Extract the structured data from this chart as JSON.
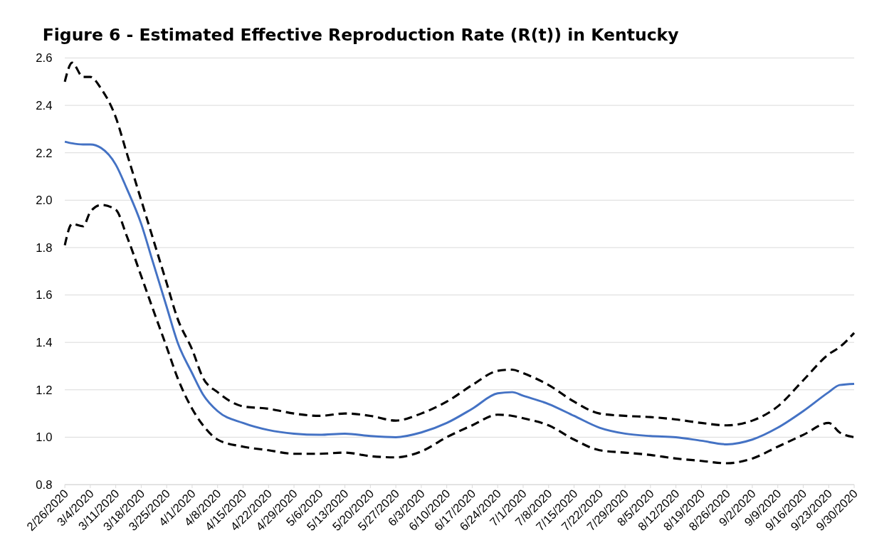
{
  "chart_data": {
    "type": "line",
    "title": "Figure 6 - Estimated Effective Reproduction Rate (R(t)) in Kentucky",
    "x": [
      "2020-02-26",
      "2020-02-28",
      "2020-03-02",
      "2020-03-04",
      "2020-03-07",
      "2020-03-11",
      "2020-03-14",
      "2020-03-18",
      "2020-03-21",
      "2020-03-25",
      "2020-03-28",
      "2020-04-01",
      "2020-04-04",
      "2020-04-08",
      "2020-04-15",
      "2020-04-22",
      "2020-04-29",
      "2020-05-06",
      "2020-05-13",
      "2020-05-20",
      "2020-05-27",
      "2020-06-03",
      "2020-06-10",
      "2020-06-17",
      "2020-06-24",
      "2020-06-28",
      "2020-07-01",
      "2020-07-08",
      "2020-07-15",
      "2020-07-22",
      "2020-07-29",
      "2020-08-05",
      "2020-08-12",
      "2020-08-19",
      "2020-08-26",
      "2020-09-02",
      "2020-09-09",
      "2020-09-16",
      "2020-09-23",
      "2020-09-26",
      "2020-09-30"
    ],
    "series": [
      {
        "color": "#000000",
        "line_style": "dashed",
        "values": [
          2.5,
          2.58,
          2.52,
          2.52,
          2.47,
          2.35,
          2.2,
          2.0,
          1.85,
          1.65,
          1.5,
          1.37,
          1.25,
          1.19,
          1.13,
          1.12,
          1.1,
          1.09,
          1.1,
          1.09,
          1.07,
          1.1,
          1.15,
          1.22,
          1.28,
          1.285,
          1.27,
          1.22,
          1.15,
          1.1,
          1.09,
          1.085,
          1.075,
          1.06,
          1.05,
          1.07,
          1.13,
          1.24,
          1.35,
          1.38,
          1.44
        ]
      },
      {
        "color": "#000000",
        "line_style": "dashed",
        "values": [
          1.81,
          1.9,
          1.89,
          1.95,
          1.98,
          1.96,
          1.85,
          1.68,
          1.55,
          1.38,
          1.25,
          1.12,
          1.05,
          0.99,
          0.96,
          0.945,
          0.93,
          0.93,
          0.935,
          0.92,
          0.915,
          0.94,
          1.0,
          1.05,
          1.095,
          1.09,
          1.08,
          1.05,
          0.99,
          0.945,
          0.935,
          0.925,
          0.91,
          0.9,
          0.89,
          0.91,
          0.96,
          1.01,
          1.06,
          1.02,
          1.0
        ]
      },
      {
        "color": "#4472c4",
        "line_style": "solid",
        "values": [
          2.247,
          2.24,
          2.235,
          2.235,
          2.22,
          2.15,
          2.05,
          1.9,
          1.75,
          1.55,
          1.4,
          1.27,
          1.18,
          1.11,
          1.06,
          1.03,
          1.015,
          1.01,
          1.015,
          1.005,
          1.0,
          1.02,
          1.06,
          1.12,
          1.185,
          1.19,
          1.175,
          1.14,
          1.09,
          1.04,
          1.015,
          1.005,
          1.0,
          0.985,
          0.97,
          0.99,
          1.04,
          1.11,
          1.19,
          1.22,
          1.225
        ]
      }
    ],
    "xlim": [
      "2020-02-26",
      "2020-09-30"
    ],
    "xticks": [
      {
        "value": "2020-02-26",
        "label": "2/26/2020"
      },
      {
        "value": "2020-03-04",
        "label": "3/4/2020"
      },
      {
        "value": "2020-03-11",
        "label": "3/11/2020"
      },
      {
        "value": "2020-03-18",
        "label": "3/18/2020"
      },
      {
        "value": "2020-03-25",
        "label": "3/25/2020"
      },
      {
        "value": "2020-04-01",
        "label": "4/1/2020"
      },
      {
        "value": "2020-04-08",
        "label": "4/8/2020"
      },
      {
        "value": "2020-04-15",
        "label": "4/15/2020"
      },
      {
        "value": "2020-04-22",
        "label": "4/22/2020"
      },
      {
        "value": "2020-04-29",
        "label": "4/29/2020"
      },
      {
        "value": "2020-05-06",
        "label": "5/6/2020"
      },
      {
        "value": "2020-05-13",
        "label": "5/13/2020"
      },
      {
        "value": "2020-05-20",
        "label": "5/20/2020"
      },
      {
        "value": "2020-05-27",
        "label": "5/27/2020"
      },
      {
        "value": "2020-06-03",
        "label": "6/3/2020"
      },
      {
        "value": "2020-06-10",
        "label": "6/10/2020"
      },
      {
        "value": "2020-06-17",
        "label": "6/17/2020"
      },
      {
        "value": "2020-06-24",
        "label": "6/24/2020"
      },
      {
        "value": "2020-07-01",
        "label": "7/1/2020"
      },
      {
        "value": "2020-07-08",
        "label": "7/8/2020"
      },
      {
        "value": "2020-07-15",
        "label": "7/15/2020"
      },
      {
        "value": "2020-07-22",
        "label": "7/22/2020"
      },
      {
        "value": "2020-07-29",
        "label": "7/29/2020"
      },
      {
        "value": "2020-08-05",
        "label": "8/5/2020"
      },
      {
        "value": "2020-08-12",
        "label": "8/12/2020"
      },
      {
        "value": "2020-08-19",
        "label": "8/19/2020"
      },
      {
        "value": "2020-08-26",
        "label": "8/26/2020"
      },
      {
        "value": "2020-09-02",
        "label": "9/2/2020"
      },
      {
        "value": "2020-09-09",
        "label": "9/9/2020"
      },
      {
        "value": "2020-09-16",
        "label": "9/16/2020"
      },
      {
        "value": "2020-09-23",
        "label": "9/23/2020"
      },
      {
        "value": "2020-09-30",
        "label": "9/30/2020"
      }
    ],
    "ylim": [
      0.8,
      2.6
    ],
    "yticks": [
      {
        "value": 0.8,
        "label": "0.8"
      },
      {
        "value": 1.0,
        "label": "1.0"
      },
      {
        "value": 1.2,
        "label": "1.2"
      },
      {
        "value": 1.4,
        "label": "1.4"
      },
      {
        "value": 1.6,
        "label": "1.6"
      },
      {
        "value": 1.8,
        "label": "1.8"
      },
      {
        "value": 2.0,
        "label": "2.0"
      },
      {
        "value": 2.2,
        "label": "2.2"
      },
      {
        "value": 2.4,
        "label": "2.4"
      },
      {
        "value": 2.6,
        "label": "2.6"
      }
    ],
    "grid": "y"
  }
}
